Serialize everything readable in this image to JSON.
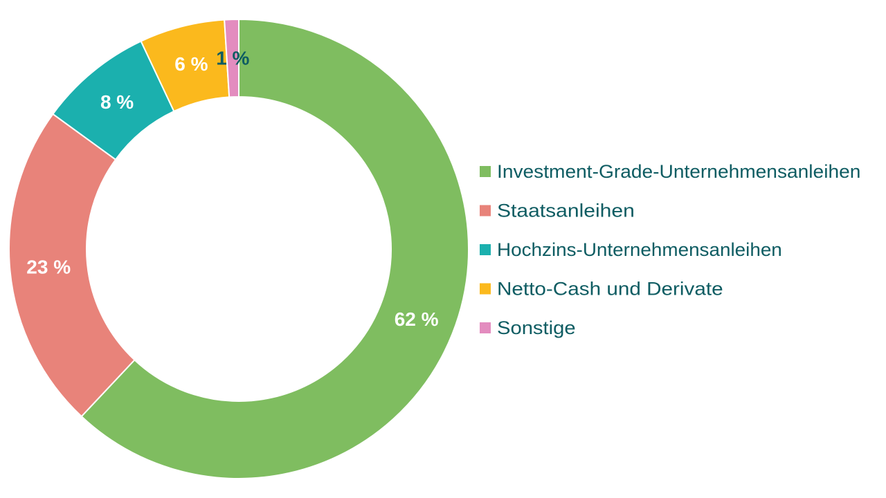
{
  "chart_data": {
    "type": "pie",
    "variant": "donut",
    "categories": [
      "Investment-Grade-Unternehmensanleihen",
      "Staatsanleihen",
      "Hochzins-Unternehmensanleihen",
      "Netto-Cash und Derivate",
      "Sonstige"
    ],
    "values": [
      62,
      23,
      8,
      6,
      1
    ],
    "data_labels": [
      "62 %",
      "23 %",
      "8 %",
      "6 %",
      "1 %"
    ],
    "colors": [
      "#7fbd60",
      "#e8837a",
      "#1bb0ae",
      "#fbb91d",
      "#e38cbf"
    ],
    "label_colors": [
      "#ffffff",
      "#ffffff",
      "#ffffff",
      "#ffffff",
      "#0e5c62"
    ],
    "legend_text_color": "#0e5c62",
    "legend_placement": "right",
    "start_angle_deg": 0,
    "direction": "clockwise"
  }
}
